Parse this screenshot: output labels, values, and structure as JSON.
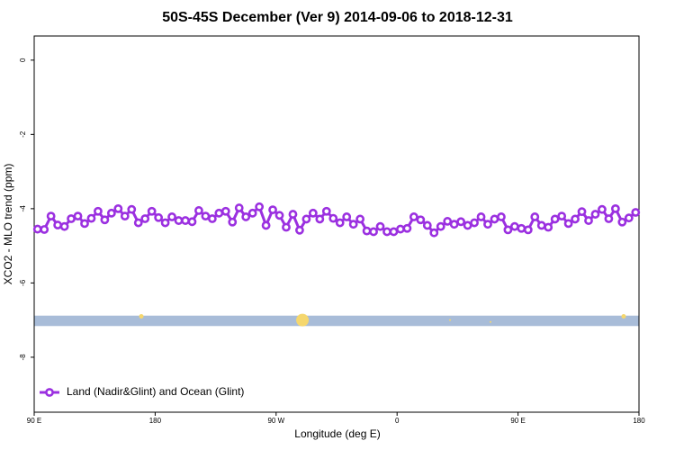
{
  "chart_data": {
    "type": "line",
    "title": "50S-45S December (Ver 9)   2014-09-06 to 2018-12-31",
    "x_label": "Longitude (deg E)",
    "y_label": "XCO2 - MLO trend (ppm)",
    "xlim": [
      90,
      540
    ],
    "ylim": [
      -9.48,
      0.65
    ],
    "xticks": [
      {
        "value": 90,
        "label": "90 E"
      },
      {
        "value": 180,
        "label": "180"
      },
      {
        "value": 270,
        "label": "90 W"
      },
      {
        "value": 360,
        "label": "0"
      },
      {
        "value": 450,
        "label": "90 E"
      },
      {
        "value": 540,
        "label": "180"
      }
    ],
    "yticks": [
      0,
      -2,
      -4,
      -6,
      -8
    ],
    "legend": "bottom-left",
    "x": [
      92.5,
      97.5,
      102.5,
      107.5,
      112.5,
      117.5,
      122.5,
      127.5,
      132.5,
      137.5,
      142.5,
      147.5,
      152.5,
      157.5,
      162.5,
      167.5,
      172.5,
      177.5,
      182.5,
      187.5,
      192.5,
      197.5,
      202.5,
      207.5,
      212.5,
      217.5,
      222.5,
      227.5,
      232.5,
      237.5,
      242.5,
      247.5,
      252.5,
      257.5,
      262.5,
      267.5,
      272.5,
      277.5,
      282.5,
      287.5,
      292.5,
      297.5,
      302.5,
      307.5,
      312.5,
      317.5,
      322.5,
      327.5,
      332.5,
      337.5,
      342.5,
      347.5,
      352.5,
      357.5,
      362.5,
      367.5,
      372.5,
      377.5,
      382.5,
      387.5,
      392.5,
      397.5,
      402.5,
      407.5,
      412.5,
      417.5,
      422.5,
      427.5,
      432.5,
      437.5,
      442.5,
      447.5,
      452.5,
      457.5,
      462.5,
      467.5,
      472.5,
      477.5,
      482.5,
      487.5,
      492.5,
      497.5,
      502.5,
      507.5,
      512.5,
      517.5,
      522.5,
      527.5,
      532.5,
      537.5
    ],
    "series": [
      {
        "name": "Land (Nadir&Glint) and Ocean (Glint)",
        "color": "#9b30e0",
        "values": [
          -4.55,
          -4.56,
          -4.2,
          -4.44,
          -4.48,
          -4.27,
          -4.2,
          -4.4,
          -4.26,
          -4.07,
          -4.3,
          -4.12,
          -4.0,
          -4.2,
          -4.02,
          -4.38,
          -4.27,
          -4.07,
          -4.24,
          -4.38,
          -4.22,
          -4.32,
          -4.32,
          -4.35,
          -4.05,
          -4.2,
          -4.27,
          -4.12,
          -4.07,
          -4.36,
          -3.98,
          -4.22,
          -4.12,
          -3.95,
          -4.45,
          -4.03,
          -4.18,
          -4.5,
          -4.15,
          -4.58,
          -4.28,
          -4.12,
          -4.28,
          -4.07,
          -4.26,
          -4.38,
          -4.22,
          -4.42,
          -4.28,
          -4.6,
          -4.62,
          -4.48,
          -4.62,
          -4.62,
          -4.55,
          -4.53,
          -4.22,
          -4.3,
          -4.45,
          -4.65,
          -4.48,
          -4.34,
          -4.42,
          -4.35,
          -4.45,
          -4.38,
          -4.22,
          -4.42,
          -4.28,
          -4.22,
          -4.57,
          -4.48,
          -4.53,
          -4.57,
          -4.22,
          -4.45,
          -4.5,
          -4.28,
          -4.2,
          -4.4,
          -4.28,
          -4.08,
          -4.32,
          -4.15,
          -4.02,
          -4.27,
          -4.0,
          -4.36,
          -4.25,
          -4.1
        ]
      }
    ],
    "band": {
      "color": "#a8bcd8",
      "range": [
        -6.88,
        -7.16
      ]
    },
    "land_markers": {
      "color": "#f5d76e",
      "x": [
        169.7,
        289.6,
        399.4,
        429.5,
        528.6
      ],
      "values": [
        -6.9,
        -7.0,
        -7.0,
        -7.05,
        -6.9
      ],
      "sizes": [
        2.5,
        7,
        1,
        1,
        2.5
      ]
    }
  }
}
